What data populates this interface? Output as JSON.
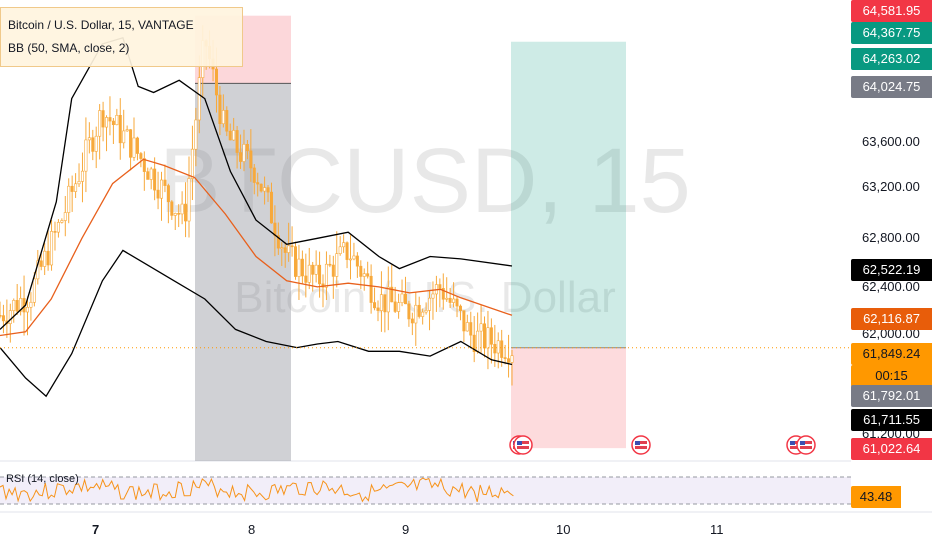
{
  "header": {
    "symbol_title": "Bitcoin / U.S. Dollar, 15, VANTAGE",
    "indicator": "BB (50, SMA, close, 2)"
  },
  "watermark": {
    "symbol": "BTCUSD, 15",
    "name": "Bitcoin / U.S. Dollar"
  },
  "rsi": {
    "label": "RSI (14, close)",
    "value": "43.48",
    "color": "#f7931a"
  },
  "price_tags": [
    {
      "label": "64,581.95",
      "bg": "#f23645",
      "fg": "#ffffff"
    },
    {
      "label": "64,367.75",
      "bg": "#089981",
      "fg": "#ffffff"
    },
    {
      "label": "64,263.02",
      "bg": "#089981",
      "fg": "#ffffff"
    },
    {
      "label": "64,024.75",
      "bg": "#787b86",
      "fg": "#ffffff"
    },
    {
      "label": "62,522.19",
      "bg": "#000000",
      "fg": "#ffffff"
    },
    {
      "label": "62,116.87",
      "bg": "#e85d0a",
      "fg": "#ffffff"
    },
    {
      "label": "61,849.24",
      "bg": "#ff9800",
      "fg": "#131722"
    },
    {
      "label": "00:15",
      "bg": "#ff9800",
      "fg": "#131722"
    },
    {
      "label": "61,792.01",
      "bg": "#787b86",
      "fg": "#ffffff"
    },
    {
      "label": "61,711.55",
      "bg": "#000000",
      "fg": "#ffffff"
    },
    {
      "label": "61,022.64",
      "bg": "#f23645",
      "fg": "#ffffff"
    }
  ],
  "colors": {
    "candle": "#f7a93b",
    "bollinger": "#000000",
    "basis": "#e8601c",
    "profit": "#089981",
    "loss": "#f23645",
    "range": "#787b86"
  },
  "events": {
    "icon": "us-flag-icon",
    "count": 4
  },
  "chart_data": {
    "type": "candlestick",
    "title": "Bitcoin / U.S. Dollar, 15, VANTAGE",
    "indicator": "BB (50, SMA, close, 2)",
    "y_axis": {
      "ticks": [
        "63,600.00",
        "63,200.00",
        "62,800.00",
        "62,400.00",
        "62,000.00",
        "61,200.00"
      ],
      "values": [
        63600,
        63200,
        62800,
        62400,
        62000,
        61200
      ]
    },
    "x_axis": {
      "ticks": [
        "7",
        "8",
        "9",
        "10",
        "11"
      ]
    },
    "price_path": [
      [
        0,
        62116
      ],
      [
        0.06,
        62300
      ],
      [
        0.12,
        62900
      ],
      [
        0.2,
        63800
      ],
      [
        0.26,
        63500
      ],
      [
        0.36,
        62900
      ],
      [
        0.4,
        64400
      ],
      [
        0.44,
        63600
      ],
      [
        0.5,
        63300
      ],
      [
        0.56,
        62600
      ],
      [
        0.62,
        62400
      ],
      [
        0.68,
        62650
      ],
      [
        0.74,
        62250
      ],
      [
        0.8,
        62150
      ],
      [
        0.86,
        62350
      ],
      [
        0.92,
        61950
      ],
      [
        1,
        61849
      ]
    ],
    "upper_band": [
      [
        0,
        62000
      ],
      [
        0.05,
        62200
      ],
      [
        0.11,
        63050
      ],
      [
        0.14,
        63900
      ],
      [
        0.2,
        64350
      ],
      [
        0.24,
        64400
      ],
      [
        0.27,
        64000
      ],
      [
        0.3,
        63950
      ],
      [
        0.35,
        64050
      ],
      [
        0.4,
        63900
      ],
      [
        0.45,
        63300
      ],
      [
        0.5,
        62900
      ],
      [
        0.56,
        62700
      ],
      [
        0.62,
        62750
      ],
      [
        0.68,
        62800
      ],
      [
        0.74,
        62600
      ],
      [
        0.78,
        62500
      ],
      [
        0.84,
        62600
      ],
      [
        0.9,
        62580
      ],
      [
        1,
        62522
      ]
    ],
    "basis": [
      [
        0,
        61950
      ],
      [
        0.05,
        61980
      ],
      [
        0.1,
        62250
      ],
      [
        0.16,
        62750
      ],
      [
        0.22,
        63200
      ],
      [
        0.28,
        63400
      ],
      [
        0.32,
        63350
      ],
      [
        0.38,
        63250
      ],
      [
        0.44,
        62950
      ],
      [
        0.5,
        62600
      ],
      [
        0.56,
        62400
      ],
      [
        0.62,
        62350
      ],
      [
        0.68,
        62380
      ],
      [
        0.74,
        62350
      ],
      [
        0.8,
        62300
      ],
      [
        0.86,
        62330
      ],
      [
        0.9,
        62260
      ],
      [
        1,
        62116
      ]
    ],
    "lower_band": [
      [
        0,
        61850
      ],
      [
        0.05,
        61600
      ],
      [
        0.09,
        61450
      ],
      [
        0.14,
        61800
      ],
      [
        0.2,
        62400
      ],
      [
        0.24,
        62650
      ],
      [
        0.28,
        62550
      ],
      [
        0.34,
        62400
      ],
      [
        0.4,
        62250
      ],
      [
        0.46,
        62000
      ],
      [
        0.52,
        61900
      ],
      [
        0.58,
        61850
      ],
      [
        0.62,
        61880
      ],
      [
        0.66,
        61900
      ],
      [
        0.72,
        61820
      ],
      [
        0.78,
        61820
      ],
      [
        0.84,
        61780
      ],
      [
        0.9,
        61900
      ],
      [
        0.96,
        61750
      ],
      [
        1,
        61711
      ]
    ],
    "short_position": {
      "entry": 64024.75,
      "stop": 64581.95
    },
    "long_position": {
      "entry": 61849.24,
      "target": 64367.75,
      "stop": 61022.64
    },
    "rsi": {
      "period": 14,
      "source": "close",
      "value": 43.48
    }
  }
}
